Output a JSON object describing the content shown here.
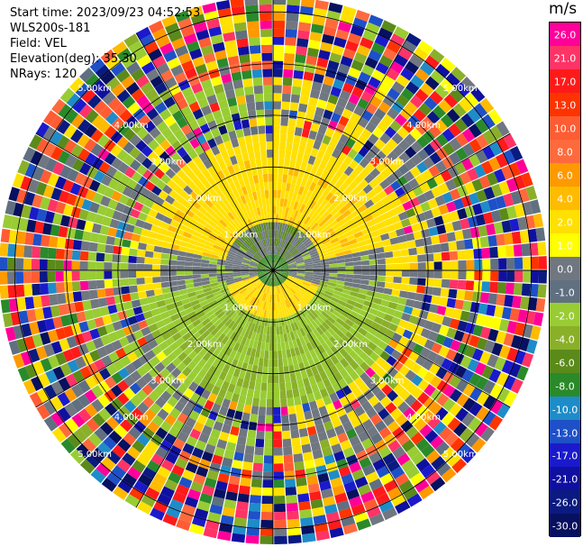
{
  "header": {
    "start_time": "Start time: 2023/09/23 04:52:53",
    "site": "WLS200s-181",
    "field": "Field: VEL",
    "elevation": "Elevation(deg): 35.30",
    "nrays": "NRays: 120"
  },
  "chart_data": {
    "type": "heatmap",
    "projection": "polar-ppi",
    "field": "VEL",
    "units": "m/s",
    "nrays": 120,
    "range_rings_km": [
      1.0,
      2.0,
      3.0,
      4.0,
      5.0
    ],
    "range_labels": [
      "1.00km",
      "2.00km",
      "3.00km",
      "4.00km",
      "5.00km"
    ],
    "max_range_km": 5.3,
    "grid": true,
    "colorbar": {
      "label": "m/s",
      "ticks": [
        "26.0",
        "21.0",
        "17.0",
        "13.0",
        "10.0",
        "8.0",
        "6.0",
        "4.0",
        "2.0",
        "1.0",
        "0.0",
        "-1.0",
        "-2.0",
        "-4.0",
        "-6.0",
        "-8.0",
        "-10.0",
        "-13.0",
        "-17.0",
        "-21.0",
        "-26.0",
        "-30.0"
      ],
      "colors": [
        "#ff0099",
        "#ff3366",
        "#ff1a1a",
        "#ff3300",
        "#ff5c33",
        "#ff6a3d",
        "#ff9900",
        "#ffbb00",
        "#ffe000",
        "#ffff00",
        "#707780",
        "#607080",
        "#99cc33",
        "#8ab02a",
        "#5a8a1a",
        "#2a8a2a",
        "#1e8cc8",
        "#1e50c8",
        "#1a1acc",
        "#1010a0",
        "#0a1a80",
        "#081060"
      ]
    }
  }
}
